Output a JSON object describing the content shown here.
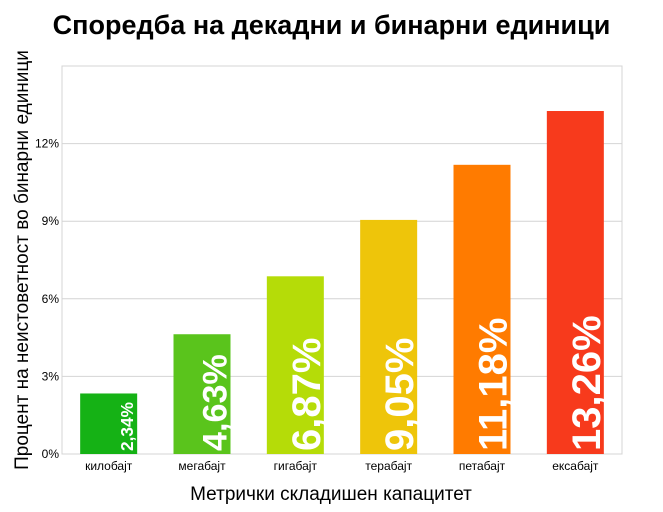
{
  "chart_data": {
    "type": "bar",
    "title": "Споредба на декадни и бинарни единици",
    "xlabel": "Метрички складишен капацитет",
    "ylabel": "Процент на неистоветност во бинарни единици",
    "categories": [
      "килобајт",
      "мегабајт",
      "гигабајт",
      "терабајт",
      "петабајт",
      "ексабајт"
    ],
    "values": [
      2.34,
      4.63,
      6.87,
      9.05,
      11.18,
      13.26
    ],
    "data_labels": [
      "2,34%",
      "4,63%",
      "6,87%",
      "9,05%",
      "11,18%",
      "13,26%"
    ],
    "colors": [
      "#15b215",
      "#5ac41c",
      "#b5dc08",
      "#eec50a",
      "#ff7b00",
      "#f73a1c"
    ],
    "ylim": [
      0,
      15
    ],
    "yticks": [
      0,
      3,
      6,
      9,
      12
    ],
    "ytick_labels": [
      "0%",
      "3%",
      "6%",
      "9%",
      "12%"
    ],
    "grid": true,
    "legend": "none"
  }
}
